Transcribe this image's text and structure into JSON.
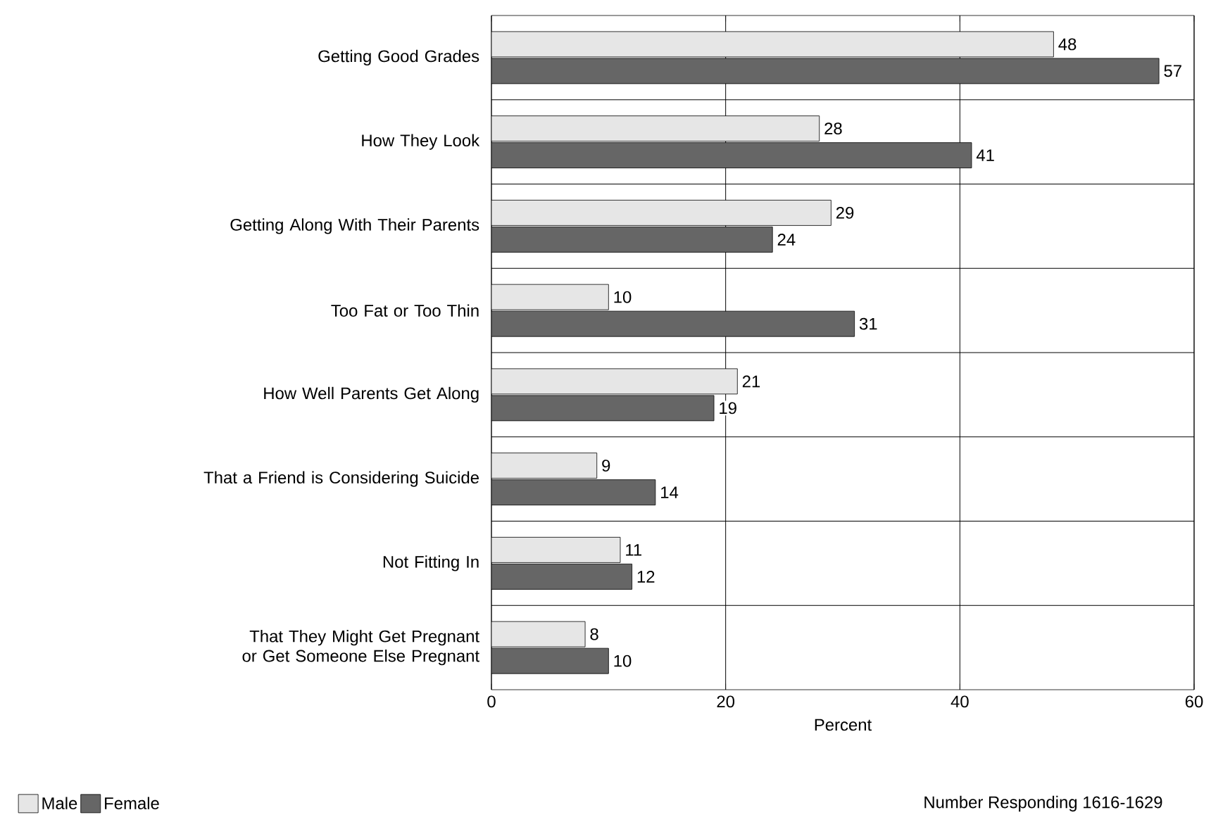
{
  "chart_data": {
    "type": "bar",
    "orientation": "horizontal",
    "xlabel": "Percent",
    "categories": [
      "Getting Good Grades",
      "How They Look",
      "Getting Along With Their Parents",
      "Too Fat or Too Thin",
      "How Well Parents Get Along",
      "That a Friend is Considering Suicide",
      "Not Fitting In",
      "That They Might Get Pregnant or Get Someone Else Pregnant"
    ],
    "series": [
      {
        "name": "Male",
        "color": "#e6e6e6",
        "values": [
          48,
          28,
          29,
          10,
          21,
          9,
          11,
          8
        ]
      },
      {
        "name": "Female",
        "color": "#666666",
        "values": [
          57,
          41,
          24,
          31,
          19,
          14,
          12,
          10
        ]
      }
    ],
    "xlim": [
      0,
      60
    ],
    "xticks": [
      0,
      20,
      40,
      60
    ],
    "grid": true,
    "legend": "bottom left",
    "data_labels": true,
    "annotations": [
      "Number Responding 1616-1629"
    ]
  }
}
